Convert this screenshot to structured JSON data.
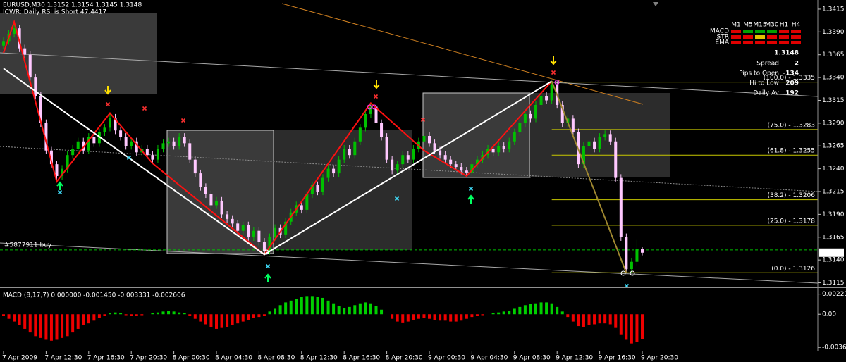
{
  "chart_data": [
    {
      "type": "candlestick",
      "title": "EURUSD,M30  1.3152 1.3154 1.3145 1.3148",
      "subtitle": "ICWR: Daily RSI is Short 47.4417",
      "up_color": "#00c000",
      "down_color": "#ffc8ff",
      "categories": [
        "7 Apr 2009",
        null,
        null,
        null,
        null,
        null,
        null,
        null,
        "7 Apr 12:30",
        null,
        null,
        null,
        null,
        null,
        null,
        null,
        "7 Apr 16:30",
        null,
        null,
        null,
        null,
        null,
        null,
        null,
        "7 Apr 20:30",
        null,
        null,
        null,
        null,
        null,
        null,
        null,
        "8 Apr 00:30",
        null,
        null,
        null,
        null,
        null,
        null,
        null,
        "8 Apr 04:30",
        null,
        null,
        null,
        null,
        null,
        null,
        null,
        "8 Apr 08:30",
        null,
        null,
        null,
        null,
        null,
        null,
        null,
        "8 Apr 12:30",
        null,
        null,
        null,
        null,
        null,
        null,
        null,
        "8 Apr 16:30",
        null,
        null,
        null,
        null,
        null,
        null,
        null,
        "8 Apr 20:30",
        null,
        null,
        null,
        null,
        null,
        null,
        null,
        "9 Apr 00:30",
        null,
        null,
        null,
        null,
        null,
        null,
        null,
        "9 Apr 04:30",
        null,
        null,
        null,
        null,
        null,
        null,
        null,
        "9 Apr 08:30",
        null,
        null,
        null,
        null,
        null,
        null,
        null,
        "9 Apr 12:30",
        null,
        null,
        null,
        null,
        null,
        null,
        null,
        "9 Apr 16:30",
        null,
        null,
        null,
        null,
        null,
        null,
        null,
        "9 Apr 20:30"
      ],
      "open": [
        1.3375,
        1.338,
        1.3388,
        1.3394,
        1.3372,
        1.3365,
        1.334,
        1.332,
        1.329,
        1.326,
        1.3245,
        1.3232,
        1.324,
        1.3255,
        1.3262,
        1.327,
        1.326,
        1.3275,
        1.3268,
        1.328,
        1.3285,
        1.3296,
        1.3282,
        1.3275,
        1.3265,
        1.327,
        1.3258,
        1.3262,
        1.3255,
        1.325,
        1.3262,
        1.3268,
        1.327,
        1.3265,
        1.3275,
        1.3268,
        1.325,
        1.3235,
        1.322,
        1.3212,
        1.32,
        1.3205,
        1.319,
        1.3185,
        1.318,
        1.3172,
        1.3178,
        1.3165,
        1.3172,
        1.316,
        1.315,
        1.3165,
        1.3175,
        1.3168,
        1.3182,
        1.3192,
        1.32,
        1.3195,
        1.3212,
        1.3222,
        1.3215,
        1.323,
        1.324,
        1.3235,
        1.325,
        1.3262,
        1.3255,
        1.327,
        1.3285,
        1.33,
        1.3308,
        1.329,
        1.3275,
        1.325,
        1.3238,
        1.3245,
        1.3255,
        1.325,
        1.3262,
        1.327,
        1.3276,
        1.3268,
        1.326,
        1.3255,
        1.325,
        1.3245,
        1.3242,
        1.3238,
        1.3236,
        1.3245,
        1.325,
        1.3255,
        1.3262,
        1.3258,
        1.3265,
        1.3262,
        1.327,
        1.328,
        1.329,
        1.33,
        1.3295,
        1.331,
        1.332,
        1.3315,
        1.3332,
        1.331,
        1.329,
        1.3295,
        1.328,
        1.3245,
        1.3265,
        1.327,
        1.3262,
        1.3275,
        1.3278,
        1.327,
        1.323,
        1.3165,
        1.313,
        1.3138,
        1.3152
      ],
      "high": [
        1.3384,
        1.3392,
        1.3401,
        1.3398,
        1.3376,
        1.3369,
        1.3344,
        1.3324,
        1.3294,
        1.3264,
        1.3249,
        1.3244,
        1.3259,
        1.3266,
        1.3274,
        1.3274,
        1.3279,
        1.3279,
        1.3284,
        1.3289,
        1.3301,
        1.33,
        1.3286,
        1.3279,
        1.3274,
        1.3274,
        1.3266,
        1.3266,
        1.3259,
        1.3266,
        1.3272,
        1.3274,
        1.3274,
        1.3279,
        1.3279,
        1.3272,
        1.3254,
        1.3239,
        1.3224,
        1.3216,
        1.3209,
        1.3209,
        1.3194,
        1.3189,
        1.3184,
        1.3182,
        1.3182,
        1.3176,
        1.3176,
        1.3164,
        1.3169,
        1.3179,
        1.3179,
        1.3186,
        1.3196,
        1.3204,
        1.3204,
        1.3216,
        1.3226,
        1.3226,
        1.3234,
        1.3244,
        1.3244,
        1.3254,
        1.3266,
        1.3266,
        1.3274,
        1.3289,
        1.3304,
        1.3312,
        1.3312,
        1.3294,
        1.3279,
        1.3254,
        1.3249,
        1.3259,
        1.3259,
        1.3266,
        1.3274,
        1.328,
        1.328,
        1.3272,
        1.3264,
        1.3259,
        1.3254,
        1.3249,
        1.3246,
        1.3242,
        1.3249,
        1.3254,
        1.3259,
        1.3266,
        1.3266,
        1.3269,
        1.3269,
        1.3274,
        1.3284,
        1.3294,
        1.3304,
        1.3304,
        1.3314,
        1.3324,
        1.3324,
        1.3336,
        1.3336,
        1.3314,
        1.3299,
        1.3299,
        1.3284,
        1.3269,
        1.3274,
        1.3274,
        1.3279,
        1.3282,
        1.3282,
        1.3274,
        1.3234,
        1.3169,
        1.3142,
        1.3162,
        1.3154
      ],
      "low": [
        1.3371,
        1.3376,
        1.3384,
        1.3368,
        1.3361,
        1.3336,
        1.3316,
        1.3286,
        1.3256,
        1.3241,
        1.3226,
        1.3228,
        1.3236,
        1.3251,
        1.3258,
        1.3256,
        1.3256,
        1.3264,
        1.3264,
        1.3276,
        1.3281,
        1.3278,
        1.3271,
        1.3261,
        1.3261,
        1.3254,
        1.3254,
        1.3251,
        1.3246,
        1.3246,
        1.3258,
        1.3264,
        1.3261,
        1.3261,
        1.3264,
        1.3246,
        1.3231,
        1.3216,
        1.3208,
        1.3196,
        1.3196,
        1.3186,
        1.3181,
        1.3176,
        1.3168,
        1.3168,
        1.3161,
        1.3161,
        1.3156,
        1.3146,
        1.3146,
        1.3161,
        1.3164,
        1.3164,
        1.3178,
        1.3188,
        1.3191,
        1.3191,
        1.3208,
        1.3211,
        1.3211,
        1.3226,
        1.3231,
        1.3231,
        1.3246,
        1.3251,
        1.3251,
        1.3266,
        1.3281,
        1.3296,
        1.3286,
        1.3271,
        1.3246,
        1.3234,
        1.3234,
        1.3241,
        1.3246,
        1.3246,
        1.3258,
        1.3266,
        1.3264,
        1.3256,
        1.3251,
        1.3246,
        1.3241,
        1.3238,
        1.3234,
        1.3232,
        1.3232,
        1.3241,
        1.3246,
        1.3251,
        1.3254,
        1.3254,
        1.3258,
        1.3258,
        1.3266,
        1.3276,
        1.3286,
        1.3291,
        1.3291,
        1.3306,
        1.3311,
        1.3311,
        1.3306,
        1.3286,
        1.3286,
        1.3276,
        1.3241,
        1.3241,
        1.3261,
        1.3258,
        1.3258,
        1.3271,
        1.3266,
        1.3226,
        1.3161,
        1.3126,
        1.3126,
        1.3134,
        1.3145
      ],
      "close": [
        1.338,
        1.3388,
        1.3394,
        1.3372,
        1.3365,
        1.334,
        1.332,
        1.329,
        1.326,
        1.3245,
        1.3232,
        1.324,
        1.3255,
        1.3262,
        1.327,
        1.326,
        1.3275,
        1.3268,
        1.328,
        1.3285,
        1.3296,
        1.3282,
        1.3275,
        1.3265,
        1.327,
        1.3258,
        1.3262,
        1.3255,
        1.325,
        1.3262,
        1.3268,
        1.327,
        1.3265,
        1.3275,
        1.3268,
        1.325,
        1.3235,
        1.322,
        1.3212,
        1.32,
        1.3205,
        1.319,
        1.3185,
        1.318,
        1.3172,
        1.3178,
        1.3165,
        1.3172,
        1.316,
        1.315,
        1.3165,
        1.3175,
        1.3168,
        1.3182,
        1.3192,
        1.32,
        1.3195,
        1.3212,
        1.3222,
        1.3215,
        1.323,
        1.324,
        1.3235,
        1.325,
        1.3262,
        1.3255,
        1.327,
        1.3285,
        1.33,
        1.3308,
        1.329,
        1.3275,
        1.325,
        1.3238,
        1.3245,
        1.3255,
        1.325,
        1.3262,
        1.327,
        1.3276,
        1.3268,
        1.326,
        1.3255,
        1.325,
        1.3245,
        1.3242,
        1.3238,
        1.3236,
        1.3245,
        1.325,
        1.3255,
        1.3262,
        1.3258,
        1.3265,
        1.3262,
        1.327,
        1.328,
        1.329,
        1.33,
        1.3295,
        1.331,
        1.332,
        1.3315,
        1.3332,
        1.331,
        1.329,
        1.3295,
        1.328,
        1.3245,
        1.3265,
        1.327,
        1.3262,
        1.3275,
        1.3278,
        1.327,
        1.323,
        1.3165,
        1.313,
        1.3138,
        1.3152,
        1.3148
      ],
      "ylim": [
        1.311,
        1.3425
      ],
      "yticks": [
        1.3415,
        {
          "value": 1.339,
          "label": "1.3390"
        },
        1.3365,
        {
          "value": 1.334,
          "label": "1.3340"
        },
        1.3315,
        {
          "value": 1.329,
          "label": "1.3290"
        },
        1.3265,
        {
          "value": 1.324,
          "label": "1.3240"
        },
        1.3215,
        {
          "value": 1.319,
          "label": "1.3190"
        },
        1.3165,
        {
          "value": 1.314,
          "label": "1.3140"
        },
        1.3115
      ],
      "grid": false,
      "zigzag": [
        {
          "color": "#ff1010",
          "bars": [
            0,
            2,
            10,
            20,
            28,
            49,
            69,
            79,
            87,
            103
          ],
          "values": [
            1.3367,
            1.3401,
            1.3226,
            1.3301,
            1.3246,
            1.3146,
            1.3312,
            1.326,
            1.3232,
            1.3336
          ]
        },
        {
          "color": "#ffffff",
          "bars": [
            0,
            49,
            103
          ],
          "values": [
            1.335,
            1.3146,
            1.3336
          ]
        },
        {
          "color": "#a08830",
          "bars": [
            103,
            117
          ],
          "values": [
            1.3336,
            1.3126
          ]
        }
      ],
      "fib_color": "#c8c800",
      "fib_start_bar": 103,
      "fib_levels": [
        {
          "value": 1.3335,
          "label": "(100.0) - 1.3335"
        },
        {
          "value": 1.3283,
          "label": "(75.0) - 1.3283"
        },
        {
          "value": 1.3255,
          "label": "(61.8) - 1.3255"
        },
        {
          "value": 1.3206,
          "label": "(38.2) - 1.3206"
        },
        {
          "value": 1.3178,
          "label": "(25.0) - 1.3178"
        },
        {
          "value": 1.3126,
          "label": "(0.0) - 1.3126"
        }
      ],
      "order_line": {
        "label": "#5877911 buy",
        "value": 1.3151,
        "color": "#00c000"
      },
      "last_price": 1.3148
    },
    {
      "type": "bar",
      "title": "MACD (8,17,7) 0.000000 -0.001450 -0.003331 -0.002606",
      "pos_color": "#00d000",
      "neg_color": "#ee0000",
      "values": [
        -0.0002,
        -0.0005,
        -0.0008,
        -0.0012,
        -0.0016,
        -0.002,
        -0.0024,
        -0.0026,
        -0.0028,
        -0.0029,
        -0.0028,
        -0.0026,
        -0.0024,
        -0.002,
        -0.0016,
        -0.0012,
        -0.001,
        -0.0007,
        -0.0004,
        -0.0002,
        0.0001,
        0.0002,
        0.0001,
        -0.0001,
        -0.0002,
        -0.0002,
        -0.0001,
        0.0,
        0.0001,
        0.0002,
        0.0003,
        0.0004,
        0.0003,
        0.0002,
        0.0001,
        -0.0002,
        -0.0005,
        -0.0008,
        -0.0011,
        -0.0014,
        -0.0016,
        -0.0015,
        -0.0014,
        -0.0012,
        -0.001,
        -0.0008,
        -0.0006,
        -0.0004,
        -0.0003,
        -0.0002,
        0.0003,
        0.0006,
        0.001,
        0.0013,
        0.0015,
        0.0017,
        0.0019,
        0.002,
        0.002,
        0.0019,
        0.0018,
        0.0015,
        0.0012,
        0.0009,
        0.0007,
        0.0008,
        0.001,
        0.0012,
        0.0013,
        0.0012,
        0.0009,
        0.0005,
        0.0,
        -0.0005,
        -0.0008,
        -0.0009,
        -0.0008,
        -0.0006,
        -0.0005,
        -0.0004,
        -0.0005,
        -0.0006,
        -0.0007,
        -0.0007,
        -0.0008,
        -0.0008,
        -0.0007,
        -0.0005,
        -0.0003,
        -0.0002,
        -0.0001,
        0.0,
        0.0001,
        0.0002,
        0.0003,
        0.0004,
        0.0006,
        0.0008,
        0.001,
        0.0011,
        0.0012,
        0.0013,
        0.0013,
        0.0012,
        0.0008,
        0.0003,
        -0.0003,
        -0.0008,
        -0.0013,
        -0.0014,
        -0.0012,
        -0.0011,
        -0.001,
        -0.001,
        -0.0011,
        -0.0015,
        -0.0022,
        -0.0028,
        -0.0032,
        -0.003,
        -0.0027
      ],
      "ylim": [
        -0.004,
        0.0028
      ],
      "yticks": [
        0.002212,
        {
          "value": 0,
          "label": "0.00"
        },
        -0.00363
      ]
    }
  ],
  "info_panel": {
    "price": 1.3148,
    "price_color": "#ff2020",
    "rows": [
      {
        "label": "Spread",
        "value": 2,
        "color": "#ff9000"
      },
      {
        "label": "Pips to Open",
        "value": -134,
        "color": "#ff5010"
      },
      {
        "label": "Hi to Low",
        "value": 209,
        "color": "#ffd000"
      },
      {
        "label": "Daily Av",
        "value": 192,
        "color": "#00ff00"
      }
    ],
    "signal_table": {
      "columns": [
        "M1",
        "M5",
        "M15",
        "M30",
        "H1",
        "H4"
      ],
      "rows": [
        {
          "name": "MACD",
          "colors": [
            "#e00000",
            "#00a000",
            "#00a000",
            "#00a000",
            "#e00000",
            "#e00000"
          ]
        },
        {
          "name": "STR",
          "colors": [
            "#e00000",
            "#e00000",
            "#e0c000",
            "#e00000",
            "#e00000",
            "#e00000"
          ]
        },
        {
          "name": "EMA",
          "colors": [
            "#e00000",
            "#e00000",
            "#e00000",
            "#e00000",
            "#e00000",
            "#e00000"
          ]
        }
      ]
    }
  }
}
